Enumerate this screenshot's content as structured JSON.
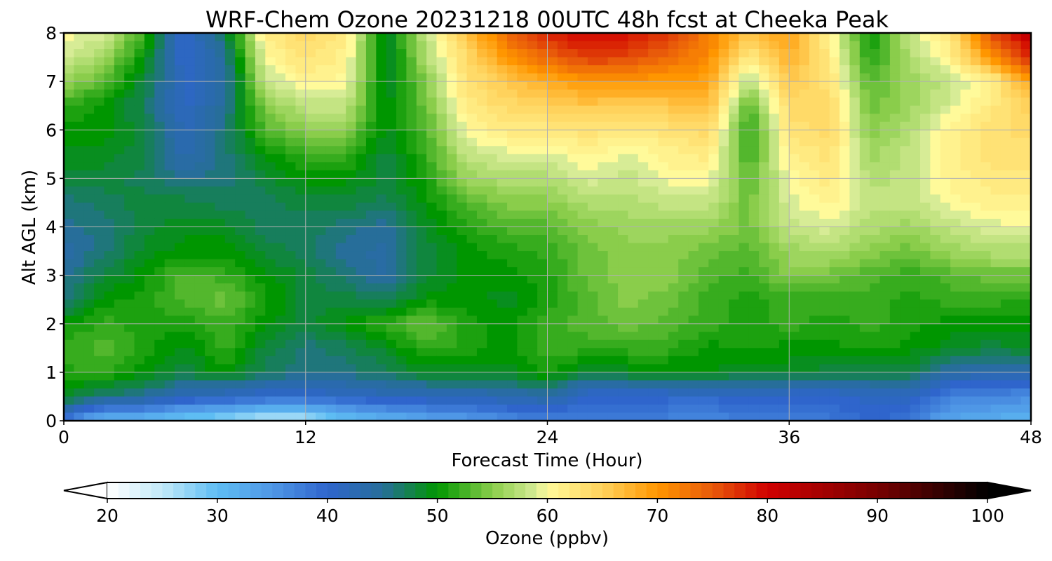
{
  "chart_data": {
    "type": "heatmap",
    "title": "WRF-Chem Ozone  20231218 00UTC 48h fcst at Cheeka Peak",
    "xlabel": "Forecast Time (Hour)",
    "ylabel": "Alt AGL (km)",
    "xlim": [
      0,
      48
    ],
    "ylim": [
      0,
      8
    ],
    "xticks": [
      0,
      12,
      24,
      36,
      48
    ],
    "yticks": [
      0,
      1,
      2,
      3,
      4,
      5,
      6,
      7,
      8
    ],
    "grid": true,
    "x": [
      0,
      2,
      4,
      6,
      8,
      10,
      12,
      14,
      16,
      18,
      20,
      22,
      24,
      26,
      28,
      30,
      32,
      34,
      36,
      38,
      40,
      42,
      44,
      46,
      48
    ],
    "y": [
      0,
      0.5,
      1,
      1.5,
      2,
      2.5,
      3,
      3.5,
      4,
      4.5,
      5,
      5.5,
      6,
      6.5,
      7,
      7.5,
      8
    ],
    "z": [
      [
        38,
        30,
        30,
        28,
        27,
        24,
        25,
        29,
        31,
        33,
        34,
        36,
        37,
        37,
        37,
        37,
        36,
        38,
        38,
        38,
        40,
        38,
        33,
        32,
        31
      ],
      [
        49,
        46,
        45,
        42,
        41,
        40,
        40,
        41,
        42,
        42,
        42,
        43,
        44,
        40,
        40,
        40,
        40,
        41,
        40,
        40,
        41,
        41,
        37,
        37,
        36
      ],
      [
        51,
        52,
        50,
        48,
        50,
        47,
        46,
        46,
        47,
        49,
        49,
        49,
        51,
        48,
        49,
        49,
        50,
        48,
        49,
        48,
        48,
        48,
        44,
        43,
        43
      ],
      [
        52,
        53,
        51,
        49,
        52,
        48,
        46,
        47,
        49,
        52,
        51,
        50,
        52,
        52,
        52,
        52,
        50,
        51,
        50,
        50,
        51,
        50,
        49,
        48,
        49
      ],
      [
        50,
        52,
        51,
        51,
        52,
        50,
        48,
        50,
        52,
        54,
        51,
        50,
        52,
        53,
        54,
        53,
        52,
        51,
        52,
        51,
        52,
        51,
        50,
        50,
        50
      ],
      [
        46,
        50,
        51,
        53,
        54,
        51,
        48,
        48,
        47,
        50,
        50,
        49,
        51,
        53,
        55,
        54,
        52,
        51,
        52,
        52,
        52,
        51,
        52,
        52,
        51
      ],
      [
        45,
        48,
        50,
        53,
        52,
        50,
        48,
        46,
        44,
        48,
        50,
        50,
        51,
        54,
        55,
        55,
        53,
        52,
        55,
        54,
        53,
        52,
        53,
        54,
        54
      ],
      [
        44,
        46,
        49,
        50,
        50,
        48,
        47,
        45,
        44,
        48,
        50,
        51,
        52,
        54,
        55,
        55,
        54,
        53,
        56,
        57,
        55,
        54,
        56,
        57,
        57
      ],
      [
        45,
        46,
        48,
        49,
        49,
        47,
        47,
        46,
        45,
        49,
        51,
        53,
        53,
        55,
        56,
        56,
        56,
        54,
        58,
        59,
        57,
        56,
        58,
        59,
        60
      ],
      [
        46,
        47,
        48,
        48,
        47,
        47,
        48,
        48,
        47,
        50,
        53,
        55,
        55,
        57,
        57,
        58,
        58,
        54,
        59,
        61,
        58,
        58,
        60,
        61,
        61
      ],
      [
        48,
        48,
        47,
        45,
        46,
        48,
        50,
        50,
        48,
        51,
        56,
        57,
        57,
        59,
        58,
        60,
        60,
        53,
        60,
        62,
        57,
        58,
        61,
        62,
        62
      ],
      [
        49,
        49,
        48,
        43,
        46,
        50,
        52,
        52,
        48,
        52,
        58,
        59,
        59,
        61,
        59,
        61,
        62,
        52,
        61,
        63,
        56,
        58,
        61,
        63,
        63
      ],
      [
        50,
        50,
        48,
        42,
        46,
        53,
        55,
        55,
        49,
        53,
        60,
        62,
        62,
        63,
        62,
        63,
        64,
        51,
        63,
        64,
        55,
        57,
        61,
        63,
        64
      ],
      [
        52,
        50,
        47,
        41,
        45,
        55,
        58,
        58,
        49,
        54,
        62,
        64,
        65,
        66,
        65,
        66,
        67,
        53,
        64,
        64,
        54,
        56,
        59,
        62,
        65
      ],
      [
        56,
        53,
        48,
        41,
        44,
        58,
        61,
        60,
        48,
        55,
        63,
        66,
        68,
        70,
        70,
        69,
        69,
        57,
        66,
        63,
        53,
        56,
        58,
        61,
        69
      ],
      [
        59,
        56,
        50,
        40,
        45,
        60,
        63,
        61,
        48,
        57,
        64,
        70,
        74,
        77,
        76,
        74,
        71,
        62,
        68,
        62,
        51,
        57,
        61,
        70,
        78
      ],
      [
        60,
        59,
        52,
        40,
        47,
        62,
        64,
        62,
        48,
        58,
        66,
        74,
        78,
        80,
        79,
        77,
        72,
        66,
        69,
        61,
        50,
        58,
        63,
        76,
        82
      ]
    ],
    "colorbar": {
      "label": "Ozone  (ppbv)",
      "min": 20,
      "max": 100,
      "step": 1,
      "ticks": [
        20,
        30,
        40,
        50,
        60,
        70,
        80,
        90,
        100
      ],
      "extend": "both"
    },
    "colors": {
      "stops": [
        [
          20,
          "#ffffff"
        ],
        [
          25,
          "#c2e9f8"
        ],
        [
          30,
          "#5ebdf3"
        ],
        [
          35,
          "#4f97e6"
        ],
        [
          40,
          "#2f65cc"
        ],
        [
          45,
          "#276e9a"
        ],
        [
          50,
          "#009600"
        ],
        [
          55,
          "#8acd4b"
        ],
        [
          59,
          "#d7ec96"
        ],
        [
          60,
          "#fffa9a"
        ],
        [
          65,
          "#ffd25c"
        ],
        [
          70,
          "#ff9600"
        ],
        [
          75,
          "#e85a0a"
        ],
        [
          80,
          "#d00000"
        ],
        [
          90,
          "#780000"
        ],
        [
          100,
          "#000000"
        ]
      ],
      "grid": "#b0b0b0",
      "axes": "#000000"
    }
  }
}
